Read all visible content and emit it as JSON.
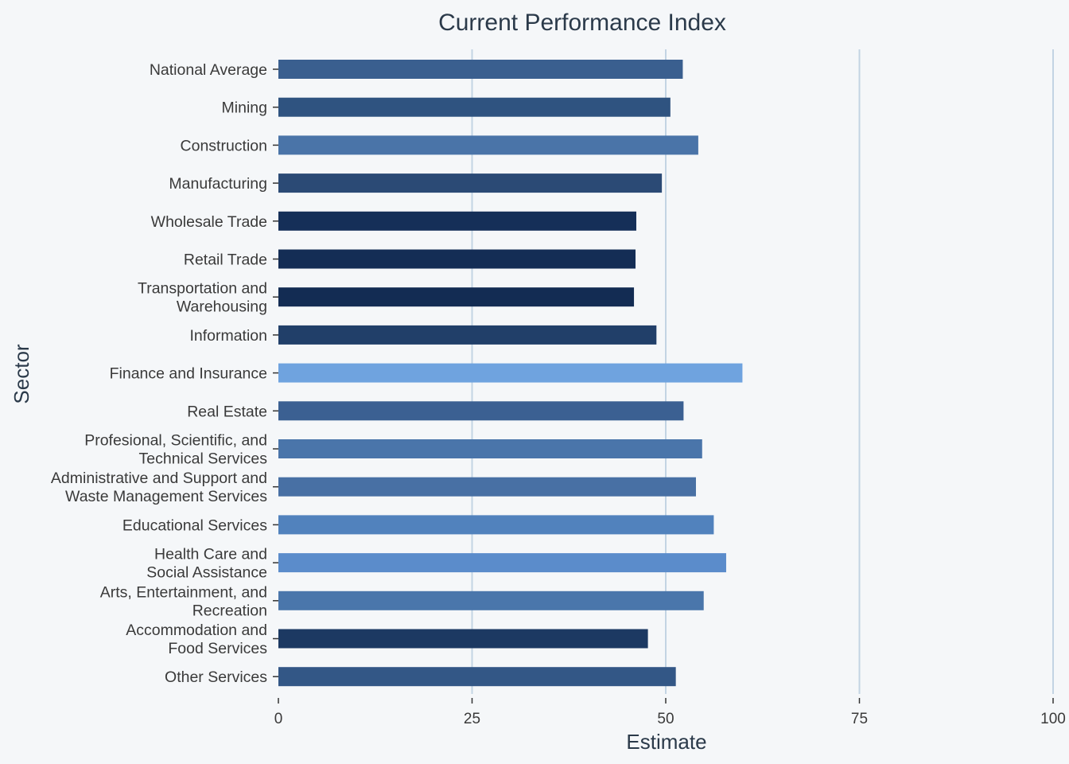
{
  "chart_data": {
    "type": "bar",
    "orientation": "horizontal",
    "title": "Current Performance Index",
    "xlabel": "Estimate",
    "ylabel": "Sector",
    "xlim": [
      0,
      100
    ],
    "xticks": [
      0,
      25,
      50,
      75,
      100
    ],
    "grid": "vertical",
    "categories": [
      [
        "National Average"
      ],
      [
        "Mining"
      ],
      [
        "Construction"
      ],
      [
        "Manufacturing"
      ],
      [
        "Wholesale Trade"
      ],
      [
        "Retail Trade"
      ],
      [
        "Transportation and",
        "Warehousing"
      ],
      [
        "Information"
      ],
      [
        "Finance and Insurance"
      ],
      [
        "Real Estate"
      ],
      [
        "Profesional, Scientific, and",
        "Technical Services"
      ],
      [
        "Administrative and Support and",
        "Waste Management Services"
      ],
      [
        "Educational Services"
      ],
      [
        "Health Care and",
        "Social Assistance"
      ],
      [
        "Arts, Entertainment, and",
        "Recreation"
      ],
      [
        "Accommodation and",
        "Food Services"
      ],
      [
        "Other Services"
      ]
    ],
    "values": [
      52.2,
      50.6,
      54.2,
      49.5,
      46.2,
      46.1,
      45.9,
      48.8,
      59.9,
      52.3,
      54.7,
      53.9,
      56.2,
      57.8,
      54.9,
      47.7,
      51.3
    ],
    "colors": [
      "#3a5f8f",
      "#2f5380",
      "#4a74a8",
      "#2b4a75",
      "#152f58",
      "#142d55",
      "#132c53",
      "#213f69",
      "#6fa3df",
      "#3b6092",
      "#4a75aa",
      "#4870a4",
      "#5182bd",
      "#5b8ccb",
      "#4a76ab",
      "#1c3962",
      "#335786"
    ]
  }
}
